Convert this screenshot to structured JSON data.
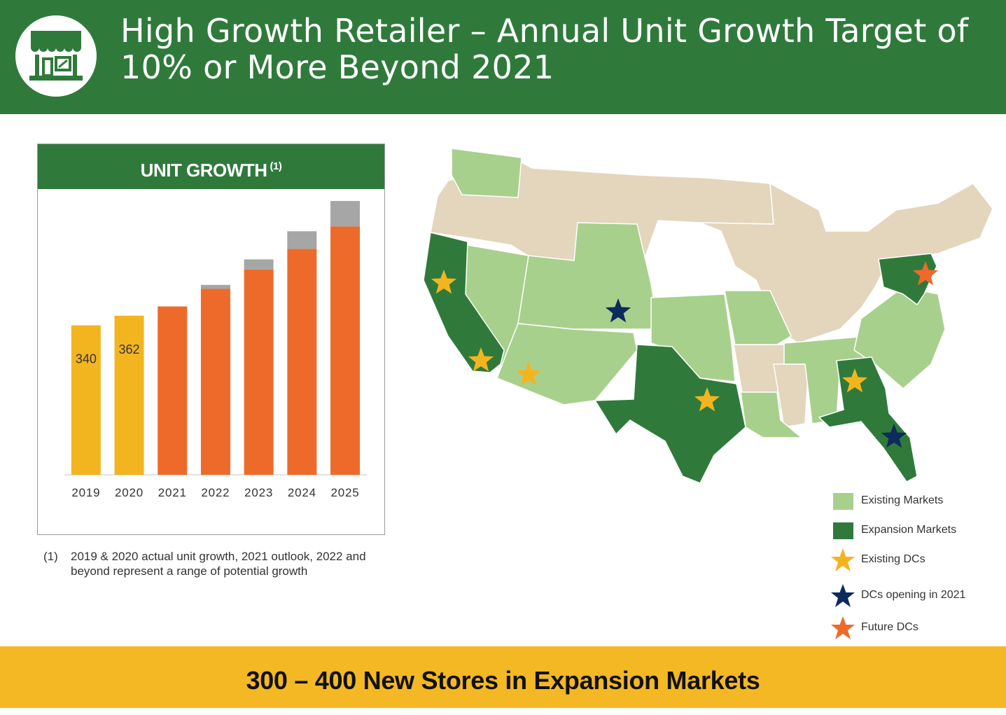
{
  "header": {
    "title": "High Growth Retailer – Annual Unit Growth Target of 10% or More Beyond 2021",
    "logo_icon": "storefront-icon",
    "bg_color": "#2f7a3b"
  },
  "chart_panel": {
    "title": "UNIT GROWTH",
    "title_superscript": "(1)"
  },
  "chart_data": {
    "type": "bar",
    "stacked": true,
    "categories": [
      "2019",
      "2020",
      "2021",
      "2022",
      "2023",
      "2024",
      "2025"
    ],
    "series": [
      {
        "color": "#f3b51f",
        "values": [
          340,
          362,
          null,
          null,
          null,
          null,
          null
        ]
      },
      {
        "color": "#ee6a2b",
        "values": [
          null,
          null,
          383,
          423,
          467,
          514,
          565
        ]
      },
      {
        "color": "#a6a6a6",
        "values": [
          null,
          null,
          null,
          9,
          23,
          40,
          58
        ]
      }
    ],
    "data_labels": [
      "340",
      "362",
      "",
      "",
      "",
      "",
      ""
    ],
    "ylim": [
      0,
      650
    ],
    "xlabel": "",
    "ylabel": "",
    "grid": false,
    "legend": "none"
  },
  "footnote": {
    "marker": "(1)",
    "text": "2019 & 2020 actual unit growth, 2021 outlook, 2022 and beyond represent a range of potential growth"
  },
  "map": {
    "colors": {
      "existing": "#a8d08d",
      "expansion": "#2f7a3b",
      "other": "#e3d6bd",
      "existing_dc": "#f3b51f",
      "dc_2021": "#0d2a5c",
      "future_dc": "#ee6a2b"
    }
  },
  "legend": {
    "items": [
      {
        "label": "Existing Markets",
        "kind": "swatch",
        "color": "#a8d08d"
      },
      {
        "label": "Expansion Markets",
        "kind": "swatch",
        "color": "#2f7a3b"
      },
      {
        "label": "Existing DCs",
        "kind": "star",
        "color": "#f3b51f"
      },
      {
        "label": "DCs opening in 2021",
        "kind": "star",
        "color": "#0d2a5c"
      },
      {
        "label": "Future DCs",
        "kind": "star",
        "color": "#ee6a2b"
      }
    ]
  },
  "footer": {
    "text": "300 – 400 New Stores in Expansion Markets",
    "bg_color": "#f3b824"
  }
}
